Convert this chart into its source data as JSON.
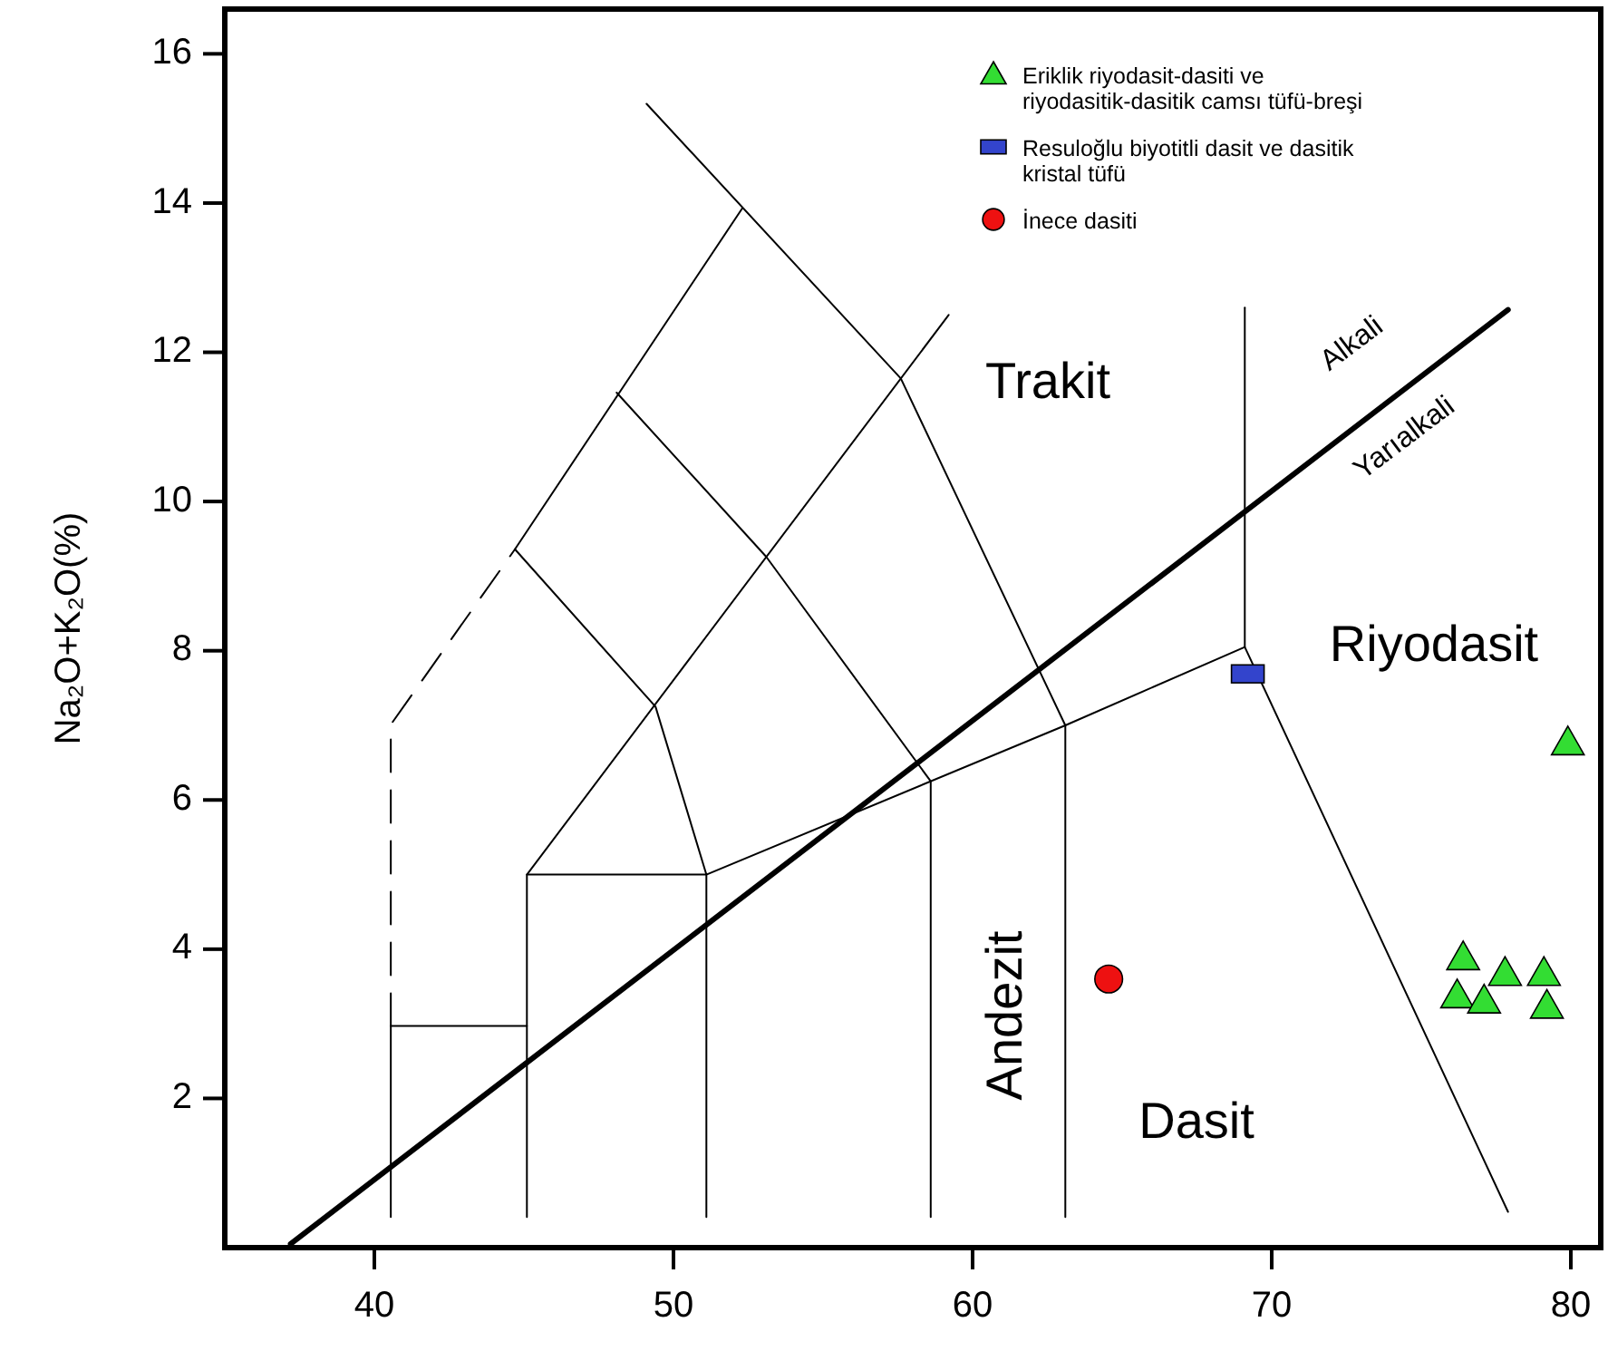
{
  "chart_data": {
    "type": "scatter",
    "ylabel": "Na₂O+K₂O(%)",
    "xlim": [
      35,
      81
    ],
    "ylim": [
      0,
      16.6
    ],
    "xticks": [
      40,
      50,
      60,
      70,
      80
    ],
    "yticks": [
      2,
      4,
      6,
      8,
      10,
      12,
      14,
      16
    ],
    "grid": false,
    "legend": "top right",
    "series": [
      {
        "type": "line",
        "color": "#000000",
        "line_style": "solid",
        "x": [
          37.2,
          77.9
        ],
        "values": [
          0.05,
          12.57
        ]
      },
      {
        "type": "line",
        "color": "#000000",
        "line_style": "solid",
        "x": [
          40.55,
          40.55
        ],
        "values": [
          0.41,
          2.97
        ]
      },
      {
        "type": "line",
        "color": "#000000",
        "line_style": "solid",
        "x": [
          40.55,
          45.1
        ],
        "values": [
          2.97,
          2.97
        ]
      },
      {
        "type": "line",
        "color": "#000000",
        "line_style": "dashed",
        "x": [
          40.55,
          40.55,
          44.7
        ],
        "values": [
          2.97,
          7.01,
          9.36
        ]
      },
      {
        "type": "line",
        "color": "#000000",
        "line_style": "solid",
        "x": [
          44.7,
          52.3
        ],
        "values": [
          9.36,
          13.93
        ]
      },
      {
        "type": "line",
        "color": "#000000",
        "line_style": "solid",
        "x": [
          49.1,
          57.6,
          63.1,
          63.1
        ],
        "values": [
          15.33,
          11.65,
          7.0,
          0.41
        ]
      },
      {
        "type": "line",
        "color": "#000000",
        "line_style": "solid",
        "x": [
          59.2,
          45.1,
          45.1
        ],
        "values": [
          12.5,
          5.0,
          0.41
        ]
      },
      {
        "type": "line",
        "color": "#000000",
        "line_style": "solid",
        "x": [
          44.7,
          49.4,
          51.1,
          51.1
        ],
        "values": [
          9.36,
          7.25,
          5.0,
          0.41
        ]
      },
      {
        "type": "line",
        "color": "#000000",
        "line_style": "solid",
        "x": [
          45.1,
          51.1,
          63.1,
          69.1,
          77.9
        ],
        "values": [
          5.0,
          5.0,
          7.0,
          8.05,
          0.48
        ]
      },
      {
        "type": "line",
        "color": "#000000",
        "line_style": "solid",
        "x": [
          69.1,
          69.1
        ],
        "values": [
          8.05,
          12.6
        ]
      },
      {
        "type": "line",
        "color": "#000000",
        "line_style": "solid",
        "x": [
          48.1,
          53.1,
          58.6,
          58.6
        ],
        "values": [
          11.46,
          9.26,
          6.25,
          0.41
        ]
      },
      {
        "name": "Eriklik riyodasit-dasiti ve riyodasitik-dasitik camsı tüfü-breşi",
        "color": "#33dd33",
        "marker": "triangle",
        "x": [
          79.9,
          76.4,
          77.8,
          79.1,
          76.2,
          77.1,
          79.2
        ],
        "values": [
          6.77,
          3.89,
          3.68,
          3.68,
          3.38,
          3.31,
          3.24
        ]
      },
      {
        "name": "Resuloğlu biyotitli dasit ve dasitik kristal tüfü",
        "color": "#3344cc",
        "marker": "square",
        "x": [
          69.2
        ],
        "values": [
          7.69
        ]
      },
      {
        "name": "İnece dasiti",
        "color": "#ee1111",
        "marker": "circle",
        "x": [
          64.55
        ],
        "values": [
          3.6
        ]
      }
    ],
    "annotations": [
      "Trakit",
      "Riyodasit",
      "Andezit",
      "Dasit",
      "Alkali",
      "Yarıalkali"
    ]
  }
}
